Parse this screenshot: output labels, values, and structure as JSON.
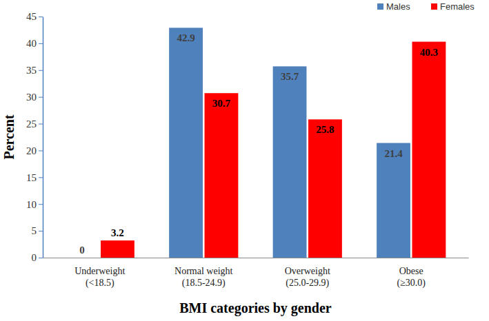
{
  "chart_data": {
    "type": "bar",
    "x_label": "BMI categories by gender",
    "y_label": "Percent",
    "categories": [
      "Underweight (<18.5)",
      "Normal weight (18.5-24.9)",
      "Overweight (25.0-29.9)",
      "Obese (≥30.0)"
    ],
    "series": [
      {
        "name": "Males",
        "color": "#4f81bd",
        "values": [
          0,
          42.9,
          35.7,
          21.4
        ]
      },
      {
        "name": "Females",
        "color": "#ff0000",
        "values": [
          3.2,
          30.7,
          25.8,
          40.3
        ]
      }
    ],
    "ylim": [
      0,
      45
    ],
    "yticks": [
      0,
      5,
      10,
      15,
      20,
      25,
      30,
      35,
      40,
      45
    ],
    "grid": false,
    "legend": "top-right",
    "data_labels": true
  }
}
